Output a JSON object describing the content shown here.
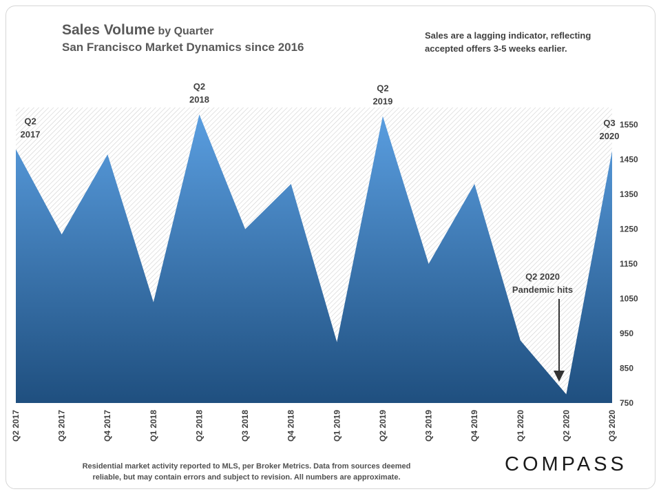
{
  "header": {
    "title_bold": "Sales Volume",
    "title_suffix": "by Quarter",
    "subtitle": "San Francisco Market Dynamics since 2016",
    "note": "Sales are a lagging indicator, reflecting accepted offers 3-5 weeks earlier."
  },
  "footer": {
    "text": "Residential market activity reported to MLS, per Broker Metrics. Data from sources deemed reliable, but may contain errors and subject to revision. All numbers are approximate.",
    "brand": "COMPASS"
  },
  "colors": {
    "area_top": "#5a9ee0",
    "area_bottom": "#1f4f7f",
    "axis_text": "#404040",
    "hatch": "#cfcfcf"
  },
  "chart_data": {
    "type": "area",
    "title": "Sales Volume by Quarter",
    "subtitle": "San Francisco Market Dynamics since 2016",
    "categories": [
      "Q2 2017",
      "Q3 2017",
      "Q4 2017",
      "Q1 2018",
      "Q2 2018",
      "Q3 2018",
      "Q4 2018",
      "Q1 2019",
      "Q2 2019",
      "Q3 2019",
      "Q4 2019",
      "Q1 2020",
      "Q2 2020",
      "Q3 2020"
    ],
    "series": [
      {
        "name": "Sales Volume",
        "values": [
          1480,
          1235,
          1465,
          1040,
          1580,
          1250,
          1380,
          925,
          1575,
          1150,
          1380,
          930,
          775,
          1475
        ]
      }
    ],
    "ylim": [
      750,
      1600
    ],
    "yticks": [
      750,
      850,
      950,
      1050,
      1150,
      1250,
      1350,
      1450,
      1550
    ],
    "y_axis_side": "right",
    "xlabel": "",
    "ylabel": "",
    "annotations": [
      {
        "category": "Q2 2017",
        "lines": [
          "Q2",
          "2017"
        ]
      },
      {
        "category": "Q2 2018",
        "lines": [
          "Q2",
          "2018"
        ]
      },
      {
        "category": "Q2 2019",
        "lines": [
          "Q2",
          "2019"
        ]
      },
      {
        "category": "Q3 2020",
        "lines": [
          "Q3",
          "2020"
        ]
      },
      {
        "category": "Q2 2020",
        "lines": [
          "Q2 2020",
          "Pandemic hits"
        ],
        "arrow": true
      }
    ]
  }
}
